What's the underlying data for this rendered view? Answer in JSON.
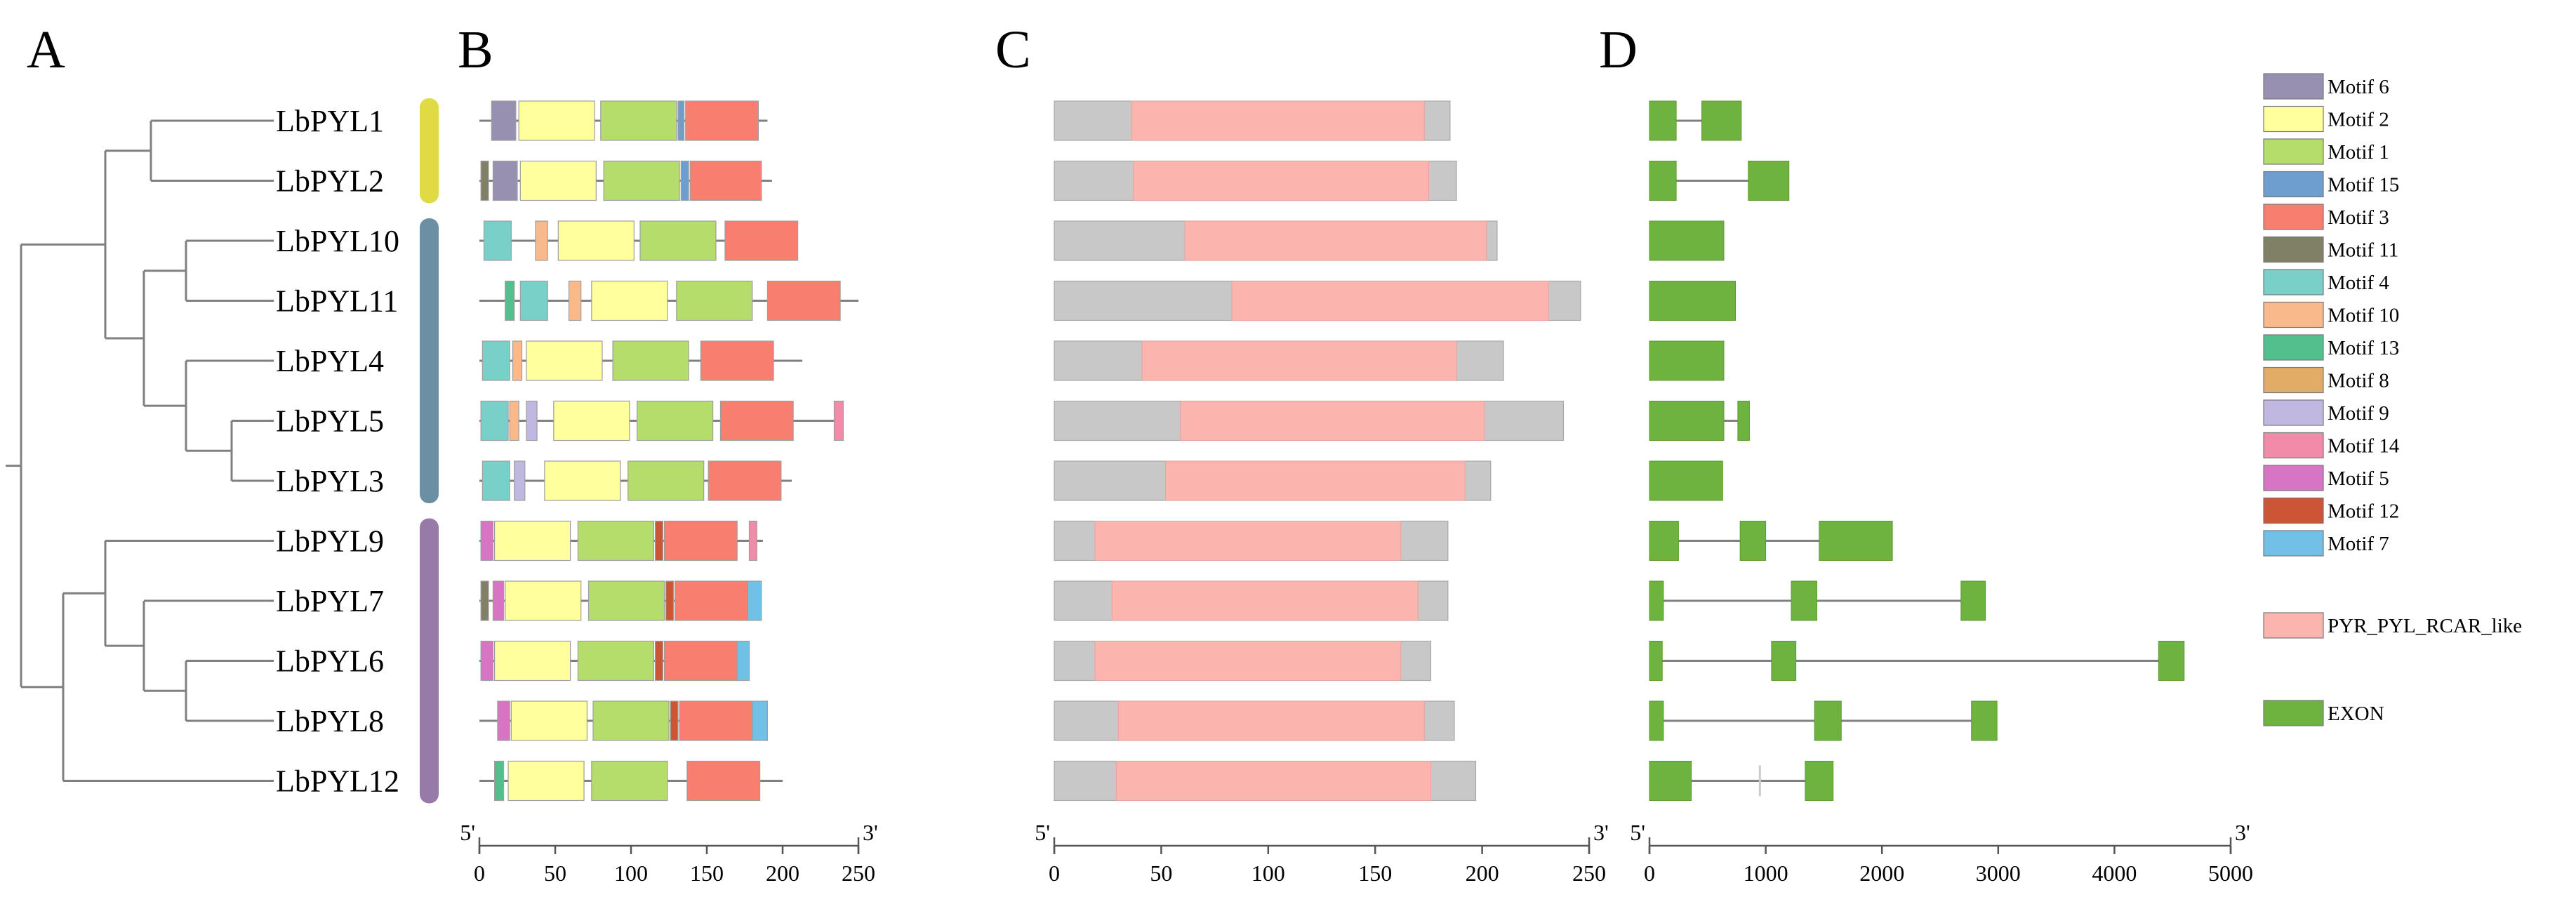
{
  "panels": [
    "A",
    "B",
    "C",
    "D"
  ],
  "genes": [
    "LbPYL1",
    "LbPYL2",
    "LbPYL10",
    "LbPYL11",
    "LbPYL4",
    "LbPYL5",
    "LbPYL3",
    "LbPYL9",
    "LbPYL7",
    "LbPYL6",
    "LbPYL8",
    "LbPYL12"
  ],
  "groups": [
    {
      "rows": [
        0,
        1
      ],
      "color": "#e0da44"
    },
    {
      "rows": [
        2,
        6
      ],
      "color": "#6b8fa3"
    },
    {
      "rows": [
        7,
        11
      ],
      "color": "#987aa8"
    }
  ],
  "motif_colors": {
    "Motif 6": "#9790b0",
    "Motif 2": "#ffff9e",
    "Motif 1": "#b5dd6b",
    "Motif 15": "#6e9dd0",
    "Motif 3": "#f87e70",
    "Motif 11": "#808066",
    "Motif 4": "#78d0c8",
    "Motif 10": "#f9b98a",
    "Motif 13": "#52bf8c",
    "Motif 8": "#e2ac67",
    "Motif 9": "#c0b8e0",
    "Motif 14": "#f28aa9",
    "Motif 5": "#d874c4",
    "Motif 12": "#cc5535",
    "Motif 7": "#71c0e8"
  },
  "legend": {
    "motifs": [
      "Motif 6",
      "Motif 2",
      "Motif 1",
      "Motif 15",
      "Motif 3",
      "Motif 11",
      "Motif 4",
      "Motif 10",
      "Motif 13",
      "Motif 8",
      "Motif 9",
      "Motif 14",
      "Motif 5",
      "Motif 12",
      "Motif 7"
    ],
    "domain": {
      "label": "PYR_PYL_RCAR_like",
      "color": "#fbb4ae"
    },
    "exon": {
      "label": "EXON",
      "color": "#6eb33f"
    }
  },
  "axes": {
    "B": {
      "ticks": [
        "0",
        "50",
        "100",
        "150",
        "200",
        "250"
      ],
      "start": "5'",
      "end": "3'",
      "max": 250
    },
    "C": {
      "ticks": [
        "0",
        "50",
        "100",
        "150",
        "200",
        "250"
      ],
      "start": "5'",
      "end": "3'",
      "max": 250
    },
    "D": {
      "ticks": [
        "0",
        "1000",
        "2000",
        "3000",
        "4000",
        "5000"
      ],
      "start": "5'",
      "end": "3'",
      "max": 5000
    }
  },
  "chart_data": [
    {
      "type": "dendrogram",
      "panel": "A",
      "leaves": [
        "LbPYL1",
        "LbPYL2",
        "LbPYL10",
        "LbPYL11",
        "LbPYL4",
        "LbPYL5",
        "LbPYL3",
        "LbPYL9",
        "LbPYL7",
        "LbPYL6",
        "LbPYL8",
        "LbPYL12"
      ],
      "tree": "((LbPYL1,LbPYL2),((LbPYL10,LbPYL11),(LbPYL4,(LbPYL5,LbPYL3)))),((LbPYL9,(LbPYL7,(LbPYL6,LbPYL8))),LbPYL12)"
    },
    {
      "type": "motif_map",
      "panel": "B",
      "xlim": [
        0,
        250
      ],
      "proteins": [
        {
          "gene": "LbPYL1",
          "length": 190,
          "motifs": [
            [
              "Motif 6",
              8,
              24
            ],
            [
              "Motif 2",
              26,
              76
            ],
            [
              "Motif 1",
              80,
              130
            ],
            [
              "Motif 15",
              131,
              135
            ],
            [
              "Motif 3",
              136,
              184
            ]
          ]
        },
        {
          "gene": "LbPYL2",
          "length": 193,
          "motifs": [
            [
              "Motif 11",
              1,
              6
            ],
            [
              "Motif 6",
              9,
              25
            ],
            [
              "Motif 2",
              27,
              77
            ],
            [
              "Motif 1",
              82,
              132
            ],
            [
              "Motif 15",
              133,
              138
            ],
            [
              "Motif 3",
              139,
              186
            ]
          ]
        },
        {
          "gene": "LbPYL10",
          "length": 210,
          "motifs": [
            [
              "Motif 4",
              3,
              21
            ],
            [
              "Motif 10",
              37,
              45
            ],
            [
              "Motif 2",
              52,
              102
            ],
            [
              "Motif 1",
              106,
              156
            ],
            [
              "Motif 3",
              162,
              210
            ]
          ]
        },
        {
          "gene": "LbPYL11",
          "length": 250,
          "motifs": [
            [
              "Motif 13",
              17,
              23
            ],
            [
              "Motif 4",
              27,
              45
            ],
            [
              "Motif 10",
              59,
              67
            ],
            [
              "Motif 2",
              74,
              124
            ],
            [
              "Motif 1",
              130,
              180
            ],
            [
              "Motif 3",
              190,
              238
            ]
          ]
        },
        {
          "gene": "LbPYL4",
          "length": 213,
          "motifs": [
            [
              "Motif 4",
              2,
              20
            ],
            [
              "Motif 10",
              22,
              28
            ],
            [
              "Motif 2",
              31,
              81
            ],
            [
              "Motif 1",
              88,
              138
            ],
            [
              "Motif 3",
              146,
              194
            ]
          ]
        },
        {
          "gene": "LbPYL5",
          "length": 240,
          "motifs": [
            [
              "Motif 4",
              1,
              19
            ],
            [
              "Motif 10",
              20,
              26
            ],
            [
              "Motif 9",
              31,
              38
            ],
            [
              "Motif 2",
              49,
              99
            ],
            [
              "Motif 1",
              104,
              154
            ],
            [
              "Motif 3",
              159,
              207
            ],
            [
              "Motif 14",
              234,
              240
            ]
          ]
        },
        {
          "gene": "LbPYL3",
          "length": 206,
          "motifs": [
            [
              "Motif 4",
              2,
              20
            ],
            [
              "Motif 9",
              23,
              30
            ],
            [
              "Motif 2",
              43,
              93
            ],
            [
              "Motif 1",
              98,
              148
            ],
            [
              "Motif 3",
              151,
              199
            ]
          ]
        },
        {
          "gene": "LbPYL9",
          "length": 187,
          "motifs": [
            [
              "Motif 5",
              1,
              9
            ],
            [
              "Motif 2",
              10,
              60
            ],
            [
              "Motif 1",
              65,
              115
            ],
            [
              "Motif 12",
              116,
              121
            ],
            [
              "Motif 3",
              122,
              170
            ],
            [
              "Motif 14",
              178,
              183
            ]
          ]
        },
        {
          "gene": "LbPYL7",
          "length": 186,
          "motifs": [
            [
              "Motif 11",
              1,
              6
            ],
            [
              "Motif 5",
              9,
              16
            ],
            [
              "Motif 2",
              17,
              67
            ],
            [
              "Motif 1",
              72,
              122
            ],
            [
              "Motif 12",
              123,
              128
            ],
            [
              "Motif 3",
              129,
              177
            ],
            [
              "Motif 7",
              177,
              186
            ]
          ]
        },
        {
          "gene": "LbPYL6",
          "length": 178,
          "motifs": [
            [
              "Motif 5",
              1,
              9
            ],
            [
              "Motif 2",
              10,
              60
            ],
            [
              "Motif 1",
              65,
              115
            ],
            [
              "Motif 12",
              116,
              121
            ],
            [
              "Motif 3",
              122,
              170
            ],
            [
              "Motif 7",
              170,
              178
            ]
          ]
        },
        {
          "gene": "LbPYL8",
          "length": 190,
          "motifs": [
            [
              "Motif 5",
              12,
              20
            ],
            [
              "Motif 2",
              21,
              71
            ],
            [
              "Motif 1",
              75,
              125
            ],
            [
              "Motif 12",
              126,
              131
            ],
            [
              "Motif 3",
              132,
              180
            ],
            [
              "Motif 7",
              180,
              190
            ]
          ]
        },
        {
          "gene": "LbPYL12",
          "length": 200,
          "motifs": [
            [
              "Motif 13",
              10,
              16
            ],
            [
              "Motif 2",
              19,
              69
            ],
            [
              "Motif 1",
              74,
              124
            ],
            [
              "Motif 3",
              137,
              185
            ]
          ]
        }
      ]
    },
    {
      "type": "domain_map",
      "panel": "C",
      "xlim": [
        0,
        250
      ],
      "proteins": [
        {
          "gene": "LbPYL1",
          "length": 185,
          "domain": [
            36,
            173
          ]
        },
        {
          "gene": "LbPYL2",
          "length": 188,
          "domain": [
            37,
            175
          ]
        },
        {
          "gene": "LbPYL10",
          "length": 207,
          "domain": [
            61,
            202
          ]
        },
        {
          "gene": "LbPYL11",
          "length": 246,
          "domain": [
            83,
            231
          ]
        },
        {
          "gene": "LbPYL4",
          "length": 210,
          "domain": [
            41,
            188
          ]
        },
        {
          "gene": "LbPYL5",
          "length": 238,
          "domain": [
            59,
            201
          ]
        },
        {
          "gene": "LbPYL3",
          "length": 204,
          "domain": [
            52,
            192
          ]
        },
        {
          "gene": "LbPYL9",
          "length": 184,
          "domain": [
            19,
            162
          ]
        },
        {
          "gene": "LbPYL7",
          "length": 184,
          "domain": [
            27,
            170
          ]
        },
        {
          "gene": "LbPYL6",
          "length": 176,
          "domain": [
            19,
            162
          ]
        },
        {
          "gene": "LbPYL8",
          "length": 187,
          "domain": [
            30,
            173
          ]
        },
        {
          "gene": "LbPYL12",
          "length": 197,
          "domain": [
            29,
            176
          ]
        }
      ]
    },
    {
      "type": "gene_structure",
      "panel": "D",
      "xlim": [
        0,
        5000
      ],
      "genes": [
        {
          "gene": "LbPYL1",
          "exons": [
            [
              0,
              230
            ],
            [
              450,
              790
            ]
          ]
        },
        {
          "gene": "LbPYL2",
          "exons": [
            [
              0,
              230
            ],
            [
              850,
              1200
            ]
          ]
        },
        {
          "gene": "LbPYL10",
          "exons": [
            [
              0,
              640
            ]
          ]
        },
        {
          "gene": "LbPYL11",
          "exons": [
            [
              0,
              740
            ]
          ]
        },
        {
          "gene": "LbPYL4",
          "exons": [
            [
              0,
              640
            ]
          ]
        },
        {
          "gene": "LbPYL5",
          "exons": [
            [
              0,
              640
            ],
            [
              760,
              860
            ]
          ]
        },
        {
          "gene": "LbPYL3",
          "exons": [
            [
              0,
              630
            ]
          ]
        },
        {
          "gene": "LbPYL9",
          "exons": [
            [
              0,
              250
            ],
            [
              780,
              1000
            ],
            [
              1460,
              2090
            ]
          ]
        },
        {
          "gene": "LbPYL7",
          "exons": [
            [
              0,
              120
            ],
            [
              1220,
              1440
            ],
            [
              2680,
              2890
            ]
          ]
        },
        {
          "gene": "LbPYL6",
          "exons": [
            [
              0,
              110
            ],
            [
              1050,
              1260
            ],
            [
              4380,
              4600
            ]
          ]
        },
        {
          "gene": "LbPYL8",
          "exons": [
            [
              0,
              120
            ],
            [
              1420,
              1650
            ],
            [
              2770,
              2990
            ]
          ]
        },
        {
          "gene": "LbPYL12",
          "exons": [
            [
              0,
              360
            ],
            [
              1340,
              1580
            ]
          ]
        }
      ]
    }
  ]
}
